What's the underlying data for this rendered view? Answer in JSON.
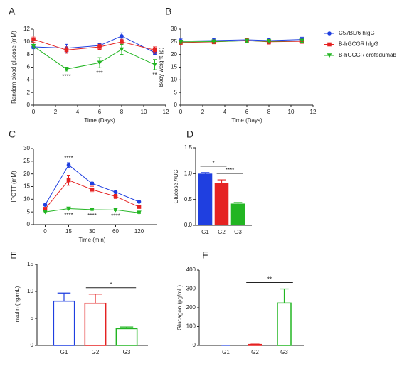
{
  "chart_data": [
    {
      "type": "line",
      "panel": "A",
      "xlabel": "Time (Days)",
      "ylabel": "Random blood glucose (mM)",
      "x": [
        0,
        3,
        6,
        8,
        11
      ],
      "xlim": [
        0,
        12
      ],
      "xticks": [
        0,
        2,
        4,
        6,
        8,
        10,
        12
      ],
      "ylim": [
        0,
        12
      ],
      "yticks": [
        0,
        2,
        4,
        6,
        8,
        10,
        12
      ],
      "series": [
        {
          "color": "#1f3fe0",
          "marker": "circle",
          "values": [
            9.2,
            9.0,
            9.4,
            10.9,
            8.3
          ],
          "errors": [
            0.3,
            0.6,
            0.3,
            0.5,
            0.3
          ]
        },
        {
          "color": "#e52222",
          "marker": "square",
          "values": [
            10.4,
            8.7,
            9.2,
            10.0,
            8.7
          ],
          "errors": [
            0.5,
            0.5,
            0.4,
            0.4,
            0.5
          ]
        },
        {
          "color": "#22b522",
          "marker": "triangle-down",
          "values": [
            9.3,
            5.7,
            6.7,
            8.8,
            6.4
          ],
          "errors": [
            0.3,
            0.3,
            0.8,
            0.8,
            0.8
          ]
        }
      ],
      "annotations": [
        {
          "x": 3,
          "text": "****",
          "side": "below"
        },
        {
          "x": 6,
          "text": "***",
          "side": "below"
        },
        {
          "x": 11,
          "text": "**",
          "side": "below"
        }
      ]
    },
    {
      "type": "line",
      "panel": "B",
      "xlabel": "Time (Days)",
      "ylabel": "Body weight (g)",
      "legend": "right",
      "x": [
        0,
        3,
        6,
        8,
        11
      ],
      "xlim": [
        0,
        12
      ],
      "xticks": [
        0,
        2,
        4,
        6,
        8,
        10,
        12
      ],
      "ylim": [
        0,
        30
      ],
      "yticks": [
        0,
        5,
        10,
        15,
        20,
        25,
        30
      ],
      "series": [
        {
          "name": "C57BL/6 hIgG",
          "color": "#1f3fe0",
          "marker": "circle",
          "values": [
            25.3,
            25.5,
            25.8,
            25.5,
            25.9
          ],
          "errors": [
            0.8,
            0.8,
            0.7,
            0.8,
            0.9
          ]
        },
        {
          "name": "B-hGCGR hIgG",
          "color": "#e52222",
          "marker": "square",
          "values": [
            24.7,
            25.0,
            25.5,
            25.0,
            25.2
          ],
          "errors": [
            0.7,
            0.8,
            0.7,
            0.9,
            0.8
          ]
        },
        {
          "name": "B-hGCGR crofedumab",
          "color": "#22b522",
          "marker": "triangle-down",
          "values": [
            25.0,
            25.1,
            25.4,
            25.2,
            25.4
          ],
          "errors": [
            0.6,
            0.6,
            0.6,
            0.7,
            0.6
          ]
        }
      ]
    },
    {
      "type": "line",
      "panel": "C",
      "xlabel": "Time (min)",
      "ylabel": "IPGTT (mM)",
      "categories": [
        "0",
        "15",
        "30",
        "60",
        "120"
      ],
      "ylim": [
        0,
        30
      ],
      "yticks": [
        0,
        5,
        10,
        15,
        20,
        25,
        30
      ],
      "series": [
        {
          "color": "#1f3fe0",
          "marker": "circle",
          "values": [
            7.8,
            23.5,
            16.2,
            12.8,
            9.0
          ],
          "errors": [
            0.3,
            0.9,
            0.5,
            0.4,
            0.3
          ]
        },
        {
          "color": "#e52222",
          "marker": "square",
          "values": [
            6.2,
            17.5,
            13.8,
            11.1,
            7.0
          ],
          "errors": [
            0.4,
            2.0,
            1.3,
            0.8,
            0.5
          ]
        },
        {
          "color": "#22b522",
          "marker": "triangle-down",
          "values": [
            5.0,
            6.3,
            5.9,
            5.8,
            4.7
          ],
          "errors": [
            0.3,
            0.4,
            0.3,
            0.3,
            0.3
          ]
        }
      ],
      "annotations": [
        {
          "x": "15",
          "text": "****",
          "side": "above"
        },
        {
          "x": "15",
          "text": "****",
          "side": "below"
        },
        {
          "x": "30",
          "text": "****",
          "side": "below"
        },
        {
          "x": "60",
          "text": "****",
          "side": "below"
        }
      ]
    },
    {
      "type": "bar",
      "panel": "D",
      "ylabel": "Glucose AUC",
      "filled": true,
      "categories": [
        "G1",
        "G2",
        "G3"
      ],
      "values": [
        1.0,
        0.82,
        0.42
      ],
      "errors": [
        0.02,
        0.06,
        0.02
      ],
      "colors": [
        "#1f3fe0",
        "#e52222",
        "#22b522"
      ],
      "ylim": [
        0,
        1.5
      ],
      "yticks": [
        {
          "value": 0,
          "label": "0.0"
        },
        0.5,
        {
          "value": 1,
          "label": "1.0"
        },
        1.5
      ],
      "brackets": [
        {
          "from": 0,
          "to": 1,
          "text": "*"
        },
        {
          "from": 1,
          "to": 2,
          "text": "****"
        }
      ]
    },
    {
      "type": "bar",
      "panel": "E",
      "ylabel": "Insulin (ng/mL)",
      "filled": false,
      "categories": [
        "G1",
        "G2",
        "G3"
      ],
      "values": [
        8.2,
        7.8,
        3.1
      ],
      "errors": [
        1.5,
        1.7,
        0.3
      ],
      "colors": [
        "#1f3fe0",
        "#e52222",
        "#22b522"
      ],
      "ylim": [
        0,
        15
      ],
      "yticks": [
        0,
        5,
        10,
        15
      ],
      "brackets": [
        {
          "from": 1,
          "to": 2,
          "text": "*"
        }
      ]
    },
    {
      "type": "bar",
      "panel": "F",
      "ylabel": "Glucagon (pg/mL)",
      "filled": false,
      "categories": [
        "G1",
        "G2",
        "G3"
      ],
      "values": [
        0,
        5,
        225
      ],
      "errors": [
        0,
        2,
        75
      ],
      "colors": [
        "#1f3fe0",
        "#e52222",
        "#22b522"
      ],
      "ylim": [
        0,
        400
      ],
      "yticks": [
        0,
        100,
        200,
        300,
        400
      ],
      "brackets": [
        {
          "from": 1,
          "to": 2,
          "text": "**"
        }
      ]
    }
  ]
}
